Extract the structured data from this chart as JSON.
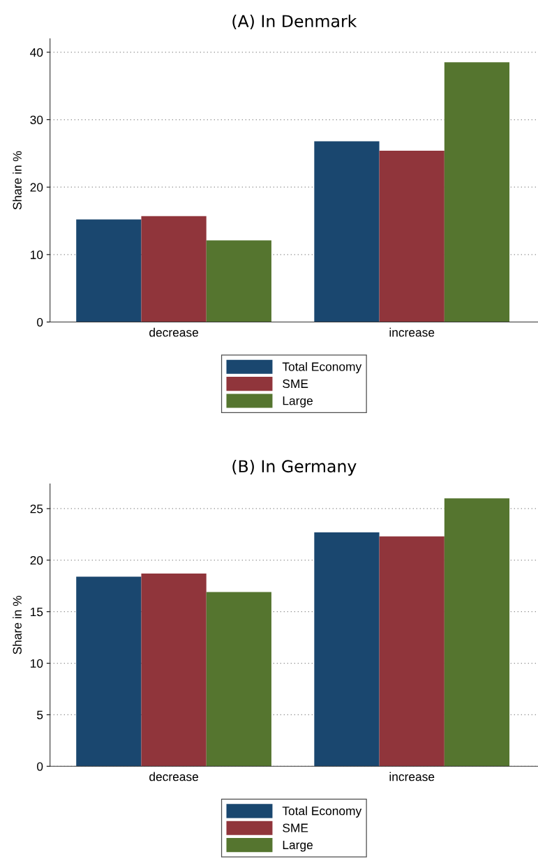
{
  "chart_data": [
    {
      "type": "bar",
      "title": "(A) In Denmark",
      "ylabel": "Share in %",
      "categories": [
        "decrease",
        "increase"
      ],
      "series": [
        {
          "name": "Total Economy",
          "color": "#1a476f",
          "values": [
            15.2,
            26.8
          ]
        },
        {
          "name": "SME",
          "color": "#90353b",
          "values": [
            15.7,
            25.4
          ]
        },
        {
          "name": "Large",
          "color": "#55752f",
          "values": [
            12.1,
            38.5
          ]
        }
      ],
      "ylim": [
        0,
        42
      ],
      "yticks": [
        0,
        10,
        20,
        30,
        40
      ],
      "grid": "y",
      "legend": "bottom"
    },
    {
      "type": "bar",
      "title": "(B) In Germany",
      "ylabel": "Share in %",
      "categories": [
        "decrease",
        "increase"
      ],
      "series": [
        {
          "name": "Total Economy",
          "color": "#1a476f",
          "values": [
            18.4,
            22.7
          ]
        },
        {
          "name": "SME",
          "color": "#90353b",
          "values": [
            18.7,
            22.3
          ]
        },
        {
          "name": "Large",
          "color": "#55752f",
          "values": [
            16.9,
            26.0
          ]
        }
      ],
      "ylim": [
        0,
        27.4
      ],
      "yticks": [
        0,
        5,
        10,
        15,
        20,
        25
      ],
      "grid": "y",
      "legend": "bottom"
    }
  ]
}
